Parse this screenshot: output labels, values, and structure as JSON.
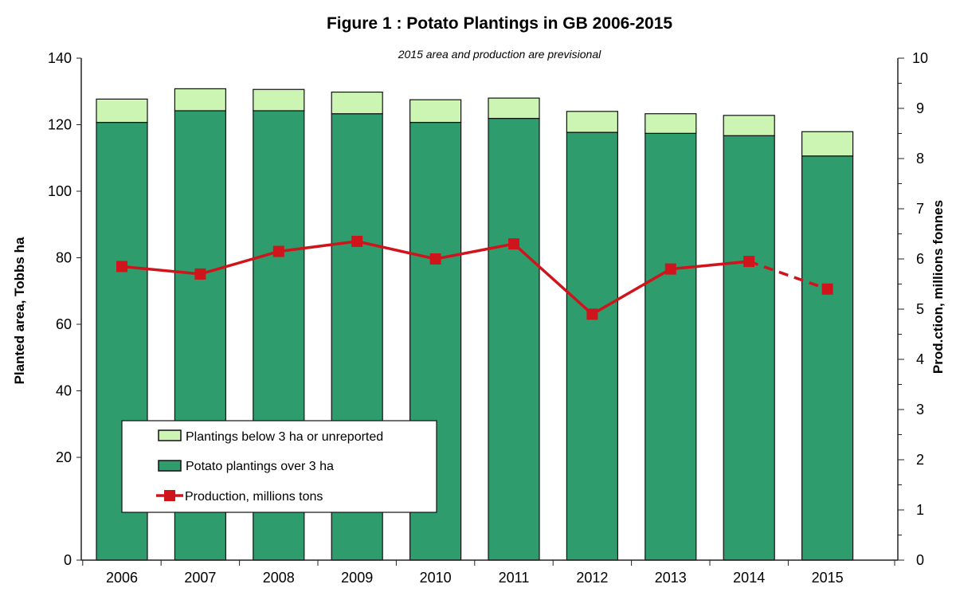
{
  "chart_data": {
    "type": "bar",
    "stacked": true,
    "title": "Figure 1 : Potato Plantings in GB 2006-2015",
    "subtitle": "2015 area and production are previsional",
    "ylabel": "Planted area, Tobbs ha",
    "y2label": "Prod.ction, millions fonnes",
    "categories": [
      "2006",
      "2007",
      "2008",
      "2009",
      "2010",
      "2011",
      "2012",
      "2013",
      "2014",
      "2015"
    ],
    "yticks": [
      0,
      20,
      40,
      60,
      80,
      100,
      120,
      140
    ],
    "y2ticks": [
      0,
      1,
      2,
      3,
      4,
      5,
      6,
      7,
      8,
      9,
      10
    ],
    "ylim": [
      0,
      140
    ],
    "y2lim": [
      0,
      10
    ],
    "grid": false,
    "legend_placement": "bottom-left",
    "series": [
      {
        "name": "Potato plantings over 3 ha",
        "type": "bar",
        "axis": "left",
        "color": "#2e9c6c",
        "values": [
          120.7,
          124.2,
          124.2,
          123.3,
          120.7,
          121.9,
          117.7,
          117.4,
          116.7,
          110.6
        ]
      },
      {
        "name": "Plantings below 3 ha or unreported",
        "type": "bar",
        "axis": "left",
        "color": "#ccf5b4",
        "values": [
          7.0,
          6.6,
          6.4,
          6.5,
          6.8,
          6.1,
          6.3,
          5.9,
          6.1,
          7.3
        ]
      },
      {
        "name": "Production, millions tons",
        "type": "line",
        "axis": "right",
        "color": "#d0141c",
        "values": [
          5.85,
          5.7,
          6.15,
          6.35,
          6.0,
          6.3,
          4.9,
          5.8,
          5.95,
          5.4
        ],
        "provisional_dashed_last_segment": true
      }
    ],
    "legend": [
      "Plantings below 3 ha or unreported",
      "Potato plantings over 3 ha",
      "Production, millions tons"
    ]
  }
}
